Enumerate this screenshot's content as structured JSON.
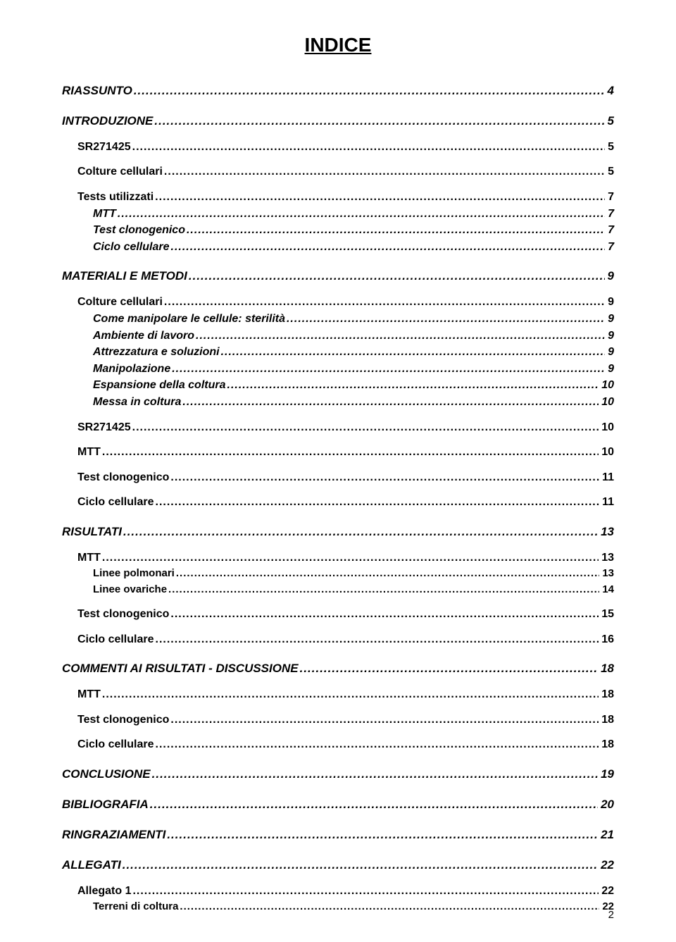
{
  "title": "INDICE",
  "pageNumber": "2",
  "entries": [
    {
      "level": "lvl-1",
      "label": "RIASSUNTO",
      "page": "4"
    },
    {
      "level": "lvl-1",
      "label": "INTRODUZIONE",
      "page": "5"
    },
    {
      "level": "lvl-2",
      "label": "SR271425",
      "page": "5"
    },
    {
      "level": "lvl-2",
      "label": "Colture cellulari",
      "page": "5"
    },
    {
      "level": "lvl-2",
      "label": "Tests utilizzati",
      "page": "7"
    },
    {
      "level": "lvl-2-it",
      "label": "MTT",
      "page": "7"
    },
    {
      "level": "lvl-2-it",
      "label": "Test clonogenico",
      "page": "7"
    },
    {
      "level": "lvl-2-it",
      "label": "Ciclo cellulare",
      "page": "7"
    },
    {
      "level": "lvl-1",
      "label": "MATERIALI E METODI",
      "page": "9"
    },
    {
      "level": "lvl-2",
      "label": "Colture cellulari",
      "page": "9"
    },
    {
      "level": "lvl-2-it",
      "label": "Come manipolare le cellule: sterilità",
      "page": "9"
    },
    {
      "level": "lvl-2-it",
      "label": "Ambiente di lavoro",
      "page": "9"
    },
    {
      "level": "lvl-2-it",
      "label": "Attrezzatura e soluzioni",
      "page": "9"
    },
    {
      "level": "lvl-2-it",
      "label": "Manipolazione",
      "page": "9"
    },
    {
      "level": "lvl-2-it",
      "label": "Espansione della coltura",
      "page": "10"
    },
    {
      "level": "lvl-2-it",
      "label": "Messa in coltura",
      "page": "10"
    },
    {
      "level": "lvl-2",
      "label": "SR271425",
      "page": "10"
    },
    {
      "level": "lvl-2",
      "label": "MTT",
      "page": "10"
    },
    {
      "level": "lvl-2",
      "label": "Test clonogenico",
      "page": "11"
    },
    {
      "level": "lvl-2",
      "label": "Ciclo cellulare",
      "page": "11"
    },
    {
      "level": "lvl-1",
      "label": "RISULTATI",
      "page": "13"
    },
    {
      "level": "lvl-2",
      "label": "MTT",
      "page": "13"
    },
    {
      "level": "lvl-3",
      "label": "Linee polmonari",
      "page": "13"
    },
    {
      "level": "lvl-3",
      "label": "Linee ovariche",
      "page": "14"
    },
    {
      "level": "lvl-2",
      "label": "Test clonogenico",
      "page": "15"
    },
    {
      "level": "lvl-2",
      "label": "Ciclo cellulare",
      "page": "16"
    },
    {
      "level": "lvl-1",
      "label": "COMMENTI AI RISULTATI - DISCUSSIONE",
      "page": "18"
    },
    {
      "level": "lvl-2",
      "label": "MTT",
      "page": "18"
    },
    {
      "level": "lvl-2",
      "label": "Test clonogenico",
      "page": "18"
    },
    {
      "level": "lvl-2",
      "label": "Ciclo cellulare",
      "page": "18"
    },
    {
      "level": "lvl-1",
      "label": "CONCLUSIONE",
      "page": "19"
    },
    {
      "level": "lvl-1",
      "label": "BIBLIOGRAFIA",
      "page": "20"
    },
    {
      "level": "lvl-1",
      "label": "RINGRAZIAMENTI",
      "page": "21"
    },
    {
      "level": "lvl-1",
      "label": "ALLEGATI",
      "page": "22"
    },
    {
      "level": "lvl-2",
      "label": "Allegato 1",
      "page": "22"
    },
    {
      "level": "lvl-3",
      "label": "Terreni di coltura",
      "page": "22"
    }
  ]
}
